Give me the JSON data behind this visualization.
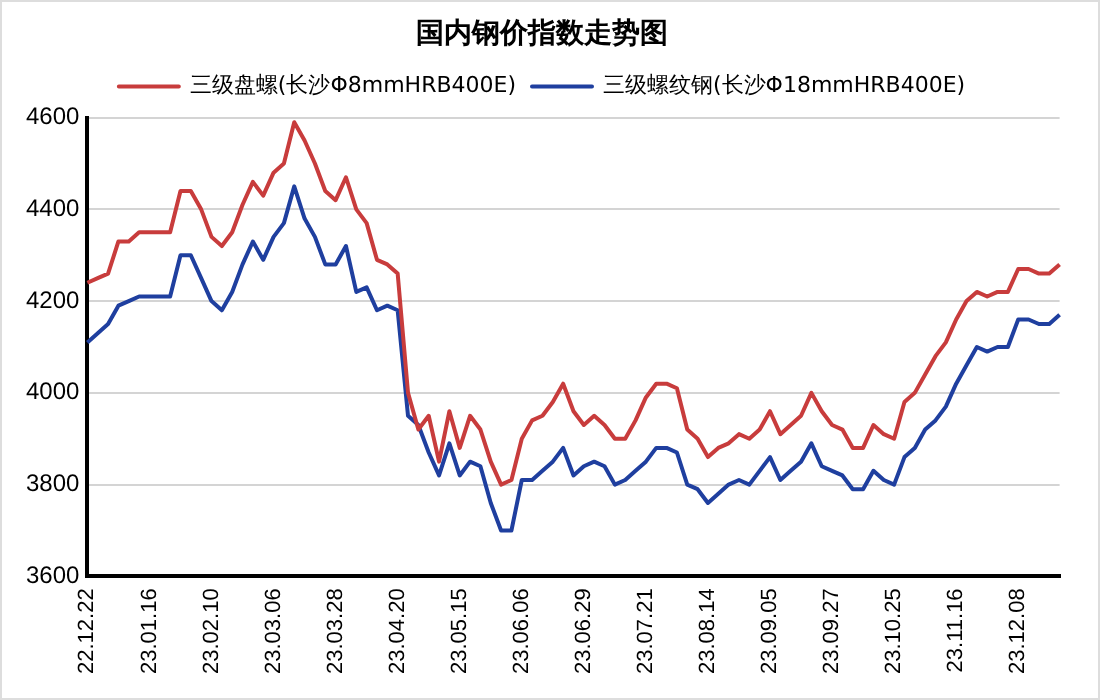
{
  "chart_data": {
    "type": "line",
    "title": "国内钢价指数走势图",
    "categories": [
      "22.12.22",
      null,
      null,
      null,
      null,
      null,
      "23.01.16",
      null,
      null,
      null,
      null,
      null,
      "23.02.10",
      null,
      null,
      null,
      null,
      null,
      "23.03.06",
      null,
      null,
      null,
      null,
      null,
      "23.03.28",
      null,
      null,
      null,
      null,
      null,
      "23.04.20",
      null,
      null,
      null,
      null,
      null,
      "23.05.15",
      null,
      null,
      null,
      null,
      null,
      "23.06.06",
      null,
      null,
      null,
      null,
      null,
      "23.06.29",
      null,
      null,
      null,
      null,
      null,
      "23.07.21",
      null,
      null,
      null,
      null,
      null,
      "23.08.14",
      null,
      null,
      null,
      null,
      null,
      "23.09.05",
      null,
      null,
      null,
      null,
      null,
      "23.09.27",
      null,
      null,
      null,
      null,
      null,
      "23.10.25",
      null,
      null,
      null,
      null,
      null,
      "23.11.16",
      null,
      null,
      null,
      null,
      null,
      "23.12.08",
      null,
      null,
      null,
      null
    ],
    "series": [
      {
        "name": "三级盘螺(长沙Φ8mmHRB400E)",
        "color": "#c83c3c",
        "values": [
          4240,
          4250,
          4260,
          4330,
          4330,
          4350,
          4350,
          4350,
          4350,
          4440,
          4440,
          4400,
          4340,
          4320,
          4350,
          4410,
          4460,
          4430,
          4480,
          4500,
          4590,
          4550,
          4500,
          4440,
          4420,
          4470,
          4400,
          4370,
          4290,
          4280,
          4260,
          4000,
          3920,
          3950,
          3850,
          3960,
          3880,
          3950,
          3920,
          3850,
          3800,
          3810,
          3900,
          3940,
          3950,
          3980,
          4020,
          3960,
          3930,
          3950,
          3930,
          3900,
          3900,
          3940,
          3990,
          4020,
          4020,
          4010,
          3920,
          3900,
          3860,
          3880,
          3890,
          3910,
          3900,
          3920,
          3960,
          3910,
          3930,
          3950,
          4000,
          3960,
          3930,
          3920,
          3880,
          3880,
          3930,
          3910,
          3900,
          3980,
          4000,
          4040,
          4080,
          4110,
          4160,
          4200,
          4220,
          4210,
          4220,
          4220,
          4270,
          4270,
          4260,
          4260,
          4280
        ]
      },
      {
        "name": "三级螺纹钢(长沙Φ18mmHRB400E)",
        "color": "#1f3f9f",
        "values": [
          4110,
          4130,
          4150,
          4190,
          4200,
          4210,
          4210,
          4210,
          4210,
          4300,
          4300,
          4250,
          4200,
          4180,
          4220,
          4280,
          4330,
          4290,
          4340,
          4370,
          4450,
          4380,
          4340,
          4280,
          4280,
          4320,
          4220,
          4230,
          4180,
          4190,
          4180,
          3950,
          3930,
          3870,
          3820,
          3890,
          3820,
          3850,
          3840,
          3760,
          3700,
          3700,
          3810,
          3810,
          3830,
          3850,
          3880,
          3820,
          3840,
          3850,
          3840,
          3800,
          3810,
          3830,
          3850,
          3880,
          3880,
          3870,
          3800,
          3790,
          3760,
          3780,
          3800,
          3810,
          3800,
          3830,
          3860,
          3810,
          3830,
          3850,
          3890,
          3840,
          3830,
          3820,
          3790,
          3790,
          3830,
          3810,
          3800,
          3860,
          3880,
          3920,
          3940,
          3970,
          4020,
          4060,
          4100,
          4090,
          4100,
          4100,
          4160,
          4160,
          4150,
          4150,
          4170
        ]
      }
    ],
    "ylim": [
      3600,
      4600
    ],
    "yticks": [
      3600,
      3800,
      4000,
      4200,
      4400,
      4600
    ],
    "grid": "y",
    "legend": "top",
    "marker": "none",
    "line_style": "solid"
  }
}
